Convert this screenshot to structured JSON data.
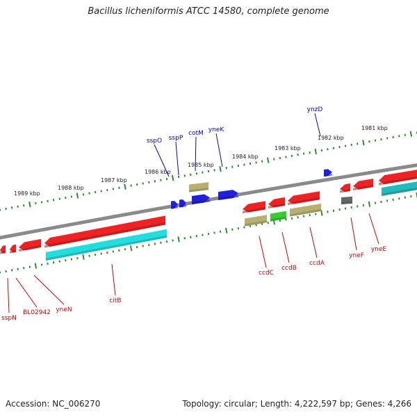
{
  "title": "Bacillus licheniformis ATCC 14580, complete genome",
  "footer": {
    "accession": "Accession: NC_006270",
    "summary": "Topology: circular; Length: 4,222,597 bp; Genes: 4,266"
  },
  "colors": {
    "backbone": "#8a8a8a",
    "tick": "#2e8b2e",
    "gene_label_forward": "#0000cc",
    "gene_label_reverse": "#cc0000",
    "cds_reverse": "#ee2222",
    "cds_forward": "#2020dd",
    "cds_other": "#666666",
    "cog_cyan": "#22dddd",
    "cog_teal": "#22bbbb",
    "cog_khaki": "#b8b070",
    "cog_green": "#33cc33",
    "ruler_text": "#222222"
  },
  "ruler": {
    "labels": [
      "1989 kbp",
      "1988 kbp",
      "1987 kbp",
      "1986 kbp",
      "1985 kbp",
      "1984 kbp",
      "1983 kbp",
      "1982 kbp",
      "1981 kbp"
    ]
  },
  "genes": [
    {
      "label": "sspN",
      "strand": "reverse"
    },
    {
      "label": "BL02942",
      "strand": "reverse"
    },
    {
      "label": "yneN",
      "strand": "reverse"
    },
    {
      "label": "citB",
      "strand": "reverse"
    },
    {
      "label": "ccdC",
      "strand": "reverse"
    },
    {
      "label": "ccdB",
      "strand": "reverse"
    },
    {
      "label": "ccdA",
      "strand": "reverse"
    },
    {
      "label": "yneF",
      "strand": "reverse"
    },
    {
      "label": "yneE",
      "strand": "reverse"
    },
    {
      "label": "sspO",
      "strand": "forward"
    },
    {
      "label": "sspP",
      "strand": "forward"
    },
    {
      "label": "cotM",
      "strand": "forward"
    },
    {
      "label": "yneK",
      "strand": "forward"
    },
    {
      "label": "ynzD",
      "strand": "forward"
    }
  ]
}
